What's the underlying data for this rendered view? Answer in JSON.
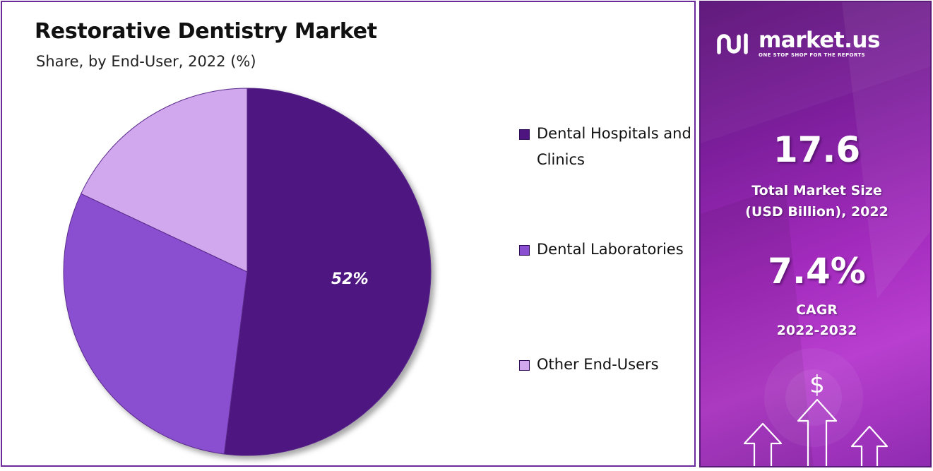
{
  "chart_data": {
    "type": "pie",
    "title": "Restorative Dentistry Market",
    "subtitle": "Share, by End-User, 2022 (%)",
    "categories": [
      "Dental Hospitals and Clinics",
      "Dental Laboratories",
      "Other End-Users"
    ],
    "values": [
      52,
      30,
      18
    ],
    "slice_labels": [
      "52%",
      "",
      ""
    ],
    "colors": [
      "#4e1580",
      "#8a4fd1",
      "#d1a7ee"
    ],
    "legend_position": "right"
  },
  "legend": {
    "items": [
      {
        "label": "Dental Hospitals and Clinics",
        "color": "#4e1580"
      },
      {
        "label": "Dental Laboratories",
        "color": "#8a4fd1"
      },
      {
        "label": "Other End-Users",
        "color": "#d1a7ee"
      }
    ]
  },
  "sidebar": {
    "brand_name": "market.us",
    "brand_tagline": "ONE STOP SHOP FOR THE REPORTS",
    "market_size_value": "17.6",
    "market_size_label_1": "Total Market Size",
    "market_size_label_2": "(USD Billion), 2022",
    "cagr_value": "7.4%",
    "cagr_label_1": "CAGR",
    "cagr_label_2": "2022-2032",
    "currency_symbol": "$",
    "accent_color": "#a32bbd"
  }
}
